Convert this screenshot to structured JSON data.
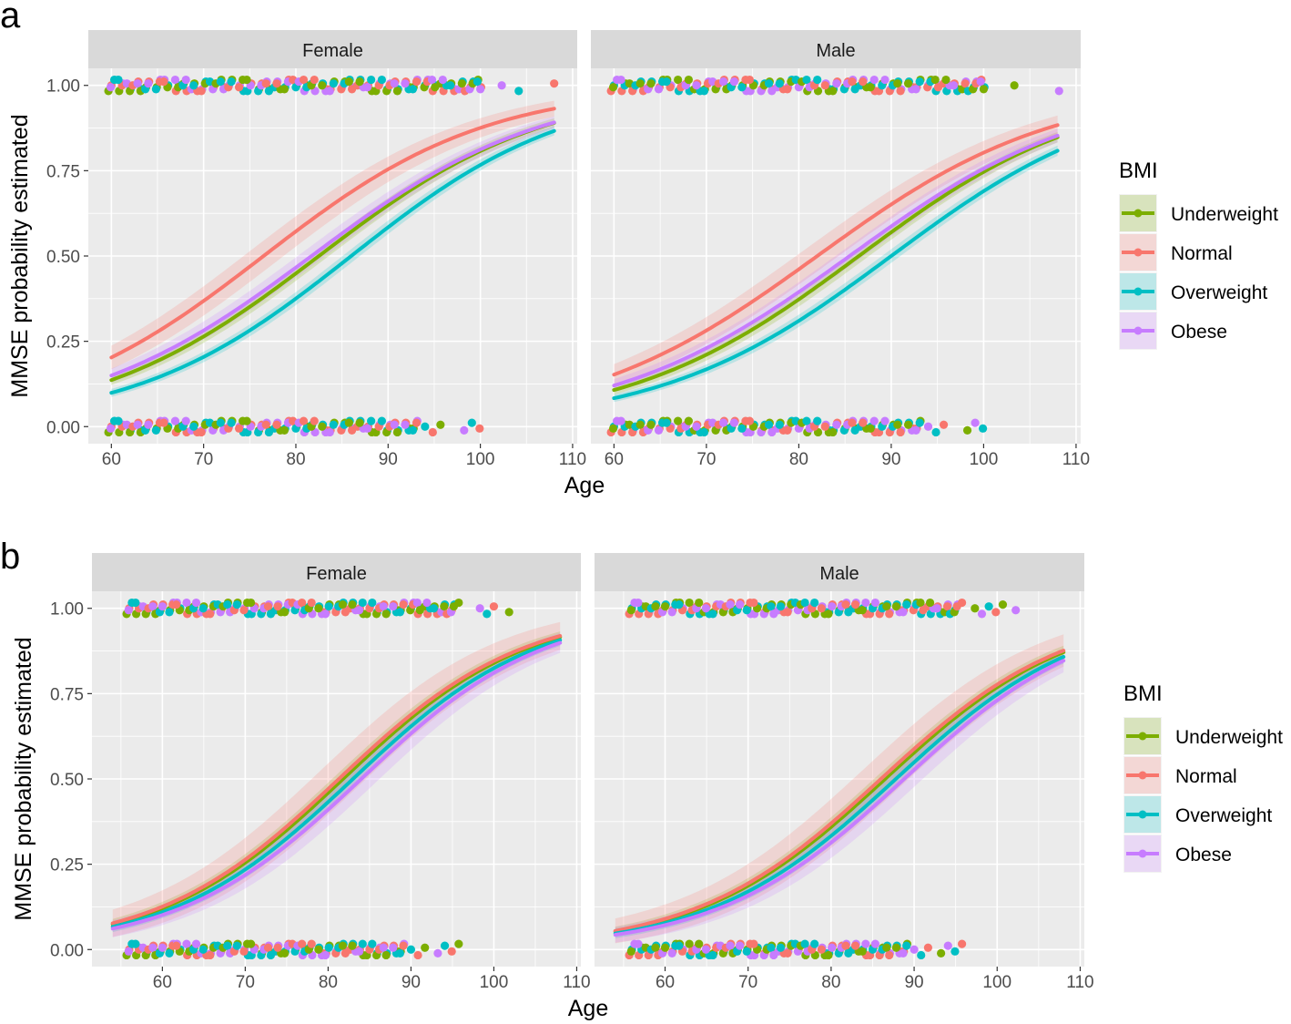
{
  "colors": {
    "Underweight": "#7CAE00",
    "Normal": "#F8766D",
    "Overweight": "#00BFC4",
    "Obese": "#C77CFF",
    "panel_bg": "#EBEBEB",
    "strip_bg": "#D9D9D9",
    "grid": "#FFFFFF"
  },
  "chart_data": [
    {
      "id": "a",
      "type": "line",
      "panel_label": "a",
      "xlabel": "Age",
      "ylabel": "MMSE probability estimated",
      "ylim": [
        -0.05,
        1.05
      ],
      "xlim": [
        57.5,
        110.5
      ],
      "xticks": [
        60,
        70,
        80,
        90,
        100,
        110
      ],
      "yticks": [
        0,
        0.25,
        0.5,
        0.75,
        1
      ],
      "ytick_labels": [
        "0.00",
        "0.25",
        "0.50",
        "0.75",
        "1.00"
      ],
      "legend_title": "BMI",
      "legend_labels": [
        "Underweight",
        "Normal",
        "Overweight",
        "Obese"
      ],
      "facets": [
        {
          "label": "Female",
          "x": [
            60,
            108
          ],
          "series": [
            {
              "name": "Underweight",
              "mid": 82.5,
              "k": 0.082,
              "band": 0.022
            },
            {
              "name": "Normal",
              "mid": 76.5,
              "k": 0.083,
              "band": 0.045
            },
            {
              "name": "Overweight",
              "mid": 86.0,
              "k": 0.085,
              "band": 0.02
            },
            {
              "name": "Obese",
              "mid": 81.7,
              "k": 0.08,
              "band": 0.03
            }
          ],
          "points_top_x": [
            60,
            61,
            62,
            63,
            64,
            65,
            66,
            67,
            68,
            69,
            70,
            71,
            72,
            73,
            74,
            75,
            76,
            77,
            78,
            79,
            80,
            81,
            82,
            83,
            84,
            85,
            86,
            87,
            88,
            89,
            90,
            91,
            92,
            93,
            94,
            95,
            96,
            97,
            98,
            99,
            100,
            102,
            104,
            108
          ],
          "points_bottom_x": [
            60,
            61,
            62,
            63,
            64,
            65,
            66,
            67,
            68,
            69,
            70,
            71,
            72,
            73,
            74,
            75,
            76,
            77,
            78,
            79,
            80,
            81,
            82,
            83,
            84,
            85,
            86,
            87,
            88,
            89,
            90,
            91,
            92,
            93,
            94,
            95,
            96,
            98,
            99,
            100
          ]
        },
        {
          "label": "Male",
          "x": [
            60,
            108
          ],
          "series": [
            {
              "name": "Underweight",
              "mid": 86.5,
              "k": 0.08,
              "band": 0.022
            },
            {
              "name": "Normal",
              "mid": 82.0,
              "k": 0.078,
              "band": 0.045
            },
            {
              "name": "Overweight",
              "mid": 90.0,
              "k": 0.08,
              "band": 0.02
            },
            {
              "name": "Obese",
              "mid": 85.5,
              "k": 0.078,
              "band": 0.03
            }
          ],
          "points_top_x": [
            60,
            61,
            62,
            63,
            64,
            65,
            66,
            67,
            68,
            69,
            70,
            71,
            72,
            73,
            74,
            75,
            76,
            77,
            78,
            79,
            80,
            81,
            82,
            83,
            84,
            85,
            86,
            87,
            88,
            89,
            90,
            91,
            92,
            93,
            94,
            95,
            96,
            97,
            98,
            99,
            100,
            103,
            108
          ],
          "points_bottom_x": [
            60,
            61,
            62,
            63,
            64,
            65,
            66,
            67,
            68,
            69,
            70,
            71,
            72,
            73,
            74,
            75,
            76,
            77,
            78,
            79,
            80,
            81,
            82,
            83,
            84,
            85,
            86,
            87,
            88,
            89,
            90,
            91,
            92,
            93,
            94,
            95,
            96,
            98,
            99,
            100
          ]
        }
      ]
    },
    {
      "id": "b",
      "type": "line",
      "panel_label": "b",
      "xlabel": "Age",
      "ylabel": "MMSE probability estimated",
      "ylim": [
        -0.05,
        1.05
      ],
      "xlim": [
        51.5,
        110.5
      ],
      "xticks": [
        60,
        70,
        80,
        90,
        100,
        110
      ],
      "yticks": [
        0,
        0.25,
        0.5,
        0.75,
        1
      ],
      "ytick_labels": [
        "0.00",
        "0.25",
        "0.50",
        "0.75",
        "1.00"
      ],
      "legend_title": "BMI",
      "legend_labels": [
        "Underweight",
        "Normal",
        "Overweight",
        "Obese"
      ],
      "facets": [
        {
          "label": "Female",
          "x": [
            54,
            108
          ],
          "series": [
            {
              "name": "Underweight",
              "mid": 81.8,
              "k": 0.091,
              "band": 0.03
            },
            {
              "name": "Normal",
              "mid": 81.3,
              "k": 0.091,
              "band": 0.075
            },
            {
              "name": "Overweight",
              "mid": 83.0,
              "k": 0.091,
              "band": 0.03
            },
            {
              "name": "Obese",
              "mid": 84.0,
              "k": 0.091,
              "band": 0.05
            }
          ],
          "points_top_x": [
            56,
            57,
            58,
            59,
            60,
            61,
            62,
            63,
            64,
            65,
            66,
            67,
            68,
            69,
            70,
            71,
            72,
            73,
            74,
            75,
            76,
            77,
            78,
            79,
            80,
            81,
            82,
            83,
            84,
            85,
            86,
            87,
            88,
            89,
            90,
            91,
            92,
            93,
            94,
            95,
            96,
            98,
            99,
            100,
            102
          ],
          "points_bottom_x": [
            56,
            57,
            58,
            59,
            60,
            61,
            62,
            63,
            64,
            65,
            66,
            67,
            68,
            69,
            70,
            71,
            72,
            73,
            74,
            75,
            76,
            77,
            78,
            79,
            80,
            81,
            82,
            83,
            84,
            85,
            86,
            87,
            88,
            89,
            90,
            91,
            92,
            93,
            94,
            95,
            96
          ]
        },
        {
          "label": "Male",
          "x": [
            54,
            108
          ],
          "series": [
            {
              "name": "Underweight",
              "mid": 86.5,
              "k": 0.089,
              "band": 0.03
            },
            {
              "name": "Normal",
              "mid": 86.0,
              "k": 0.089,
              "band": 0.075
            },
            {
              "name": "Overweight",
              "mid": 87.8,
              "k": 0.089,
              "band": 0.03
            },
            {
              "name": "Obese",
              "mid": 88.8,
              "k": 0.089,
              "band": 0.05
            }
          ],
          "points_top_x": [
            56,
            57,
            58,
            59,
            60,
            61,
            62,
            63,
            64,
            65,
            66,
            67,
            68,
            69,
            70,
            71,
            72,
            73,
            74,
            75,
            76,
            77,
            78,
            79,
            80,
            81,
            82,
            83,
            84,
            85,
            86,
            87,
            88,
            89,
            90,
            91,
            92,
            93,
            94,
            95,
            96,
            97,
            98,
            99,
            100,
            101,
            102
          ],
          "points_bottom_x": [
            56,
            57,
            58,
            59,
            60,
            61,
            62,
            63,
            64,
            65,
            66,
            67,
            68,
            69,
            70,
            71,
            72,
            73,
            74,
            75,
            76,
            77,
            78,
            79,
            80,
            81,
            82,
            83,
            84,
            85,
            86,
            87,
            88,
            89,
            90,
            91,
            92,
            93,
            94,
            95,
            96
          ]
        }
      ]
    }
  ]
}
